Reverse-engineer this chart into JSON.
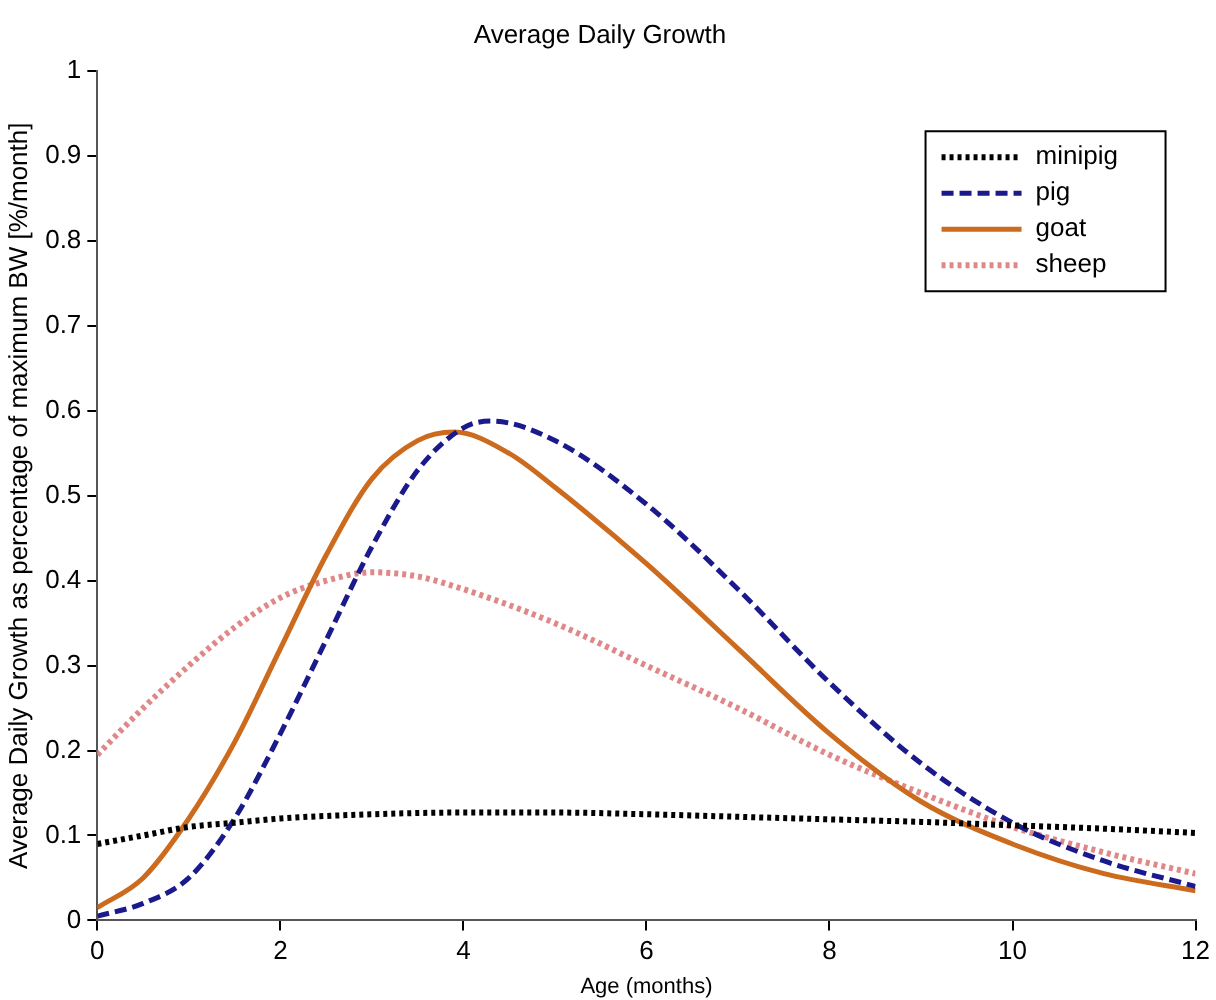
{
  "chart_data": {
    "type": "line",
    "title": "Average Daily Growth",
    "xlabel": "Age (months)",
    "ylabel": "Average Daily Growth as percentage of maximum BW [%/month]",
    "xlim": [
      0,
      12
    ],
    "xticks": [
      0,
      2,
      4,
      6,
      8,
      10,
      12
    ],
    "ylim": [
      0,
      1
    ],
    "yticks": [
      0,
      0.1,
      0.2,
      0.3,
      0.4,
      0.5,
      0.6,
      0.7,
      0.8,
      0.9,
      1
    ],
    "grid": false,
    "legend": "top right",
    "marker": "none",
    "series": [
      {
        "name": "minipig",
        "color": "#000000",
        "line_style": "dotted",
        "x": [
          0,
          0.5,
          1,
          1.5,
          2,
          3,
          4,
          5,
          6,
          7,
          8,
          9,
          10,
          11,
          12
        ],
        "values": [
          0.09,
          0.1,
          0.11,
          0.115,
          0.12,
          0.125,
          0.127,
          0.127,
          0.125,
          0.122,
          0.119,
          0.116,
          0.112,
          0.108,
          0.103
        ]
      },
      {
        "name": "pig",
        "color": "#1a1a8c",
        "line_style": "dashed",
        "x": [
          0,
          0.5,
          1,
          1.5,
          2,
          2.5,
          3,
          3.5,
          4,
          4.3,
          5,
          6,
          7,
          8,
          9,
          10,
          11,
          12
        ],
        "values": [
          0.005,
          0.02,
          0.05,
          0.12,
          0.22,
          0.33,
          0.44,
          0.53,
          0.58,
          0.588,
          0.565,
          0.49,
          0.39,
          0.28,
          0.185,
          0.115,
          0.07,
          0.04
        ]
      },
      {
        "name": "goat",
        "color": "#cc6a1e",
        "line_style": "solid",
        "x": [
          0,
          0.5,
          1,
          1.5,
          2,
          2.5,
          3,
          3.5,
          3.9,
          4.5,
          5,
          6,
          7,
          8,
          9,
          10,
          11,
          12
        ],
        "values": [
          0.015,
          0.05,
          0.12,
          0.21,
          0.32,
          0.43,
          0.52,
          0.565,
          0.575,
          0.55,
          0.51,
          0.42,
          0.32,
          0.22,
          0.14,
          0.09,
          0.055,
          0.035
        ]
      },
      {
        "name": "sheep",
        "color": "#e08888",
        "line_style": "dotted",
        "x": [
          0,
          0.5,
          1,
          1.5,
          2,
          2.5,
          3,
          3.5,
          4,
          5,
          6,
          7,
          8,
          9,
          10,
          11,
          12
        ],
        "values": [
          0.195,
          0.25,
          0.3,
          0.345,
          0.38,
          0.4,
          0.41,
          0.405,
          0.39,
          0.35,
          0.3,
          0.25,
          0.195,
          0.15,
          0.11,
          0.08,
          0.055
        ]
      }
    ]
  }
}
